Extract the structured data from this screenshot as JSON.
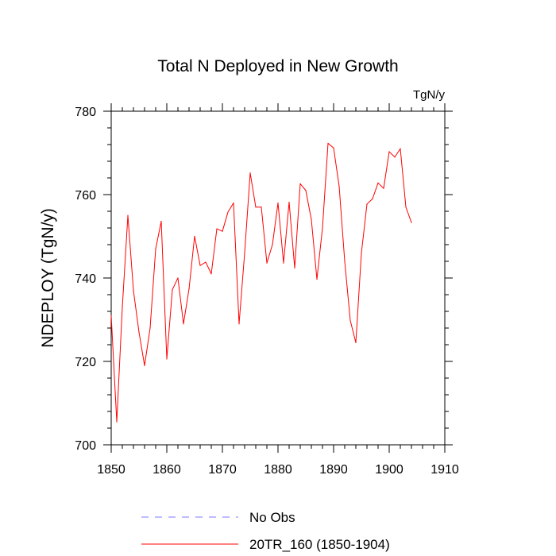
{
  "chart_data": {
    "type": "line",
    "title": "Total N Deployed in New Growth",
    "units_label": "TgN/y",
    "ylabel": "NDEPLOY  (TgN/y)",
    "xlabel": "",
    "xlim": [
      1850,
      1910
    ],
    "ylim": [
      700,
      780
    ],
    "xticks": [
      1850,
      1860,
      1870,
      1880,
      1890,
      1900,
      1910
    ],
    "yticks": [
      700,
      720,
      740,
      760,
      780
    ],
    "grid": false,
    "legend_position": "bottom",
    "series": [
      {
        "name": "No Obs",
        "style": "dashed",
        "color": "#7b7bff",
        "x": [],
        "values": []
      },
      {
        "name": "20TR_160 (1850-1904)",
        "style": "solid",
        "color": "#ff0000",
        "x": [
          1850,
          1851,
          1852,
          1853,
          1854,
          1855,
          1856,
          1857,
          1858,
          1859,
          1860,
          1861,
          1862,
          1863,
          1864,
          1865,
          1866,
          1867,
          1868,
          1869,
          1870,
          1871,
          1872,
          1873,
          1874,
          1875,
          1876,
          1877,
          1878,
          1879,
          1880,
          1881,
          1882,
          1883,
          1884,
          1885,
          1886,
          1887,
          1888,
          1889,
          1890,
          1891,
          1892,
          1893,
          1894,
          1895,
          1896,
          1897,
          1898,
          1899,
          1900,
          1901,
          1902,
          1903,
          1904
        ],
        "values": [
          731,
          705.5,
          733,
          755,
          737,
          727,
          719,
          728,
          747,
          753.6,
          720.6,
          737.2,
          740,
          729,
          737.4,
          750,
          743,
          743.8,
          741,
          751.8,
          751.2,
          755.8,
          758,
          729,
          746,
          765.2,
          757,
          757,
          743.6,
          748,
          758,
          743.6,
          758.2,
          742.4,
          762.6,
          761,
          754,
          739.7,
          752,
          772.3,
          771.2,
          762,
          744,
          729.8,
          724.5,
          746,
          757.7,
          759,
          762.8,
          761.5,
          770.3,
          769,
          771,
          757,
          753.3
        ]
      }
    ]
  }
}
